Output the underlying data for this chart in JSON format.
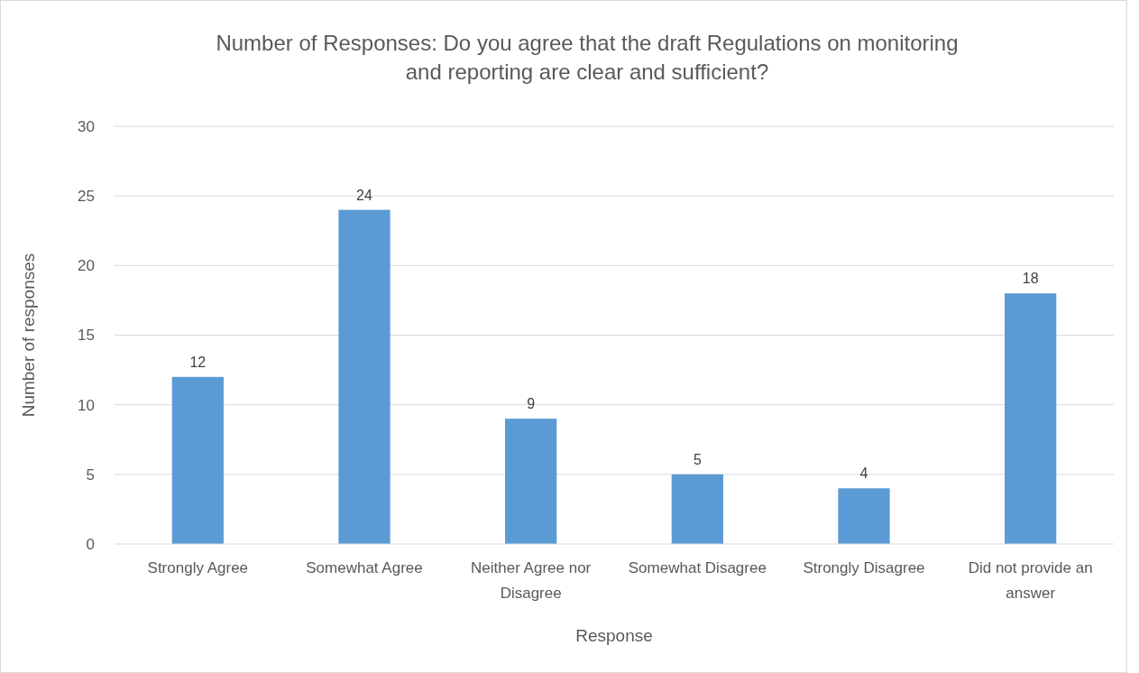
{
  "chart_data": {
    "type": "bar",
    "title": "Number of Responses: Do you agree that the draft Regulations on monitoring and reporting are clear and sufficient?",
    "xlabel": "Response",
    "ylabel": "Number of responses",
    "categories": [
      "Strongly Agree",
      "Somewhat Agree",
      "Neither Agree nor Disagree",
      "Somewhat Disagree",
      "Strongly Disagree",
      "Did not provide an answer"
    ],
    "values": [
      12,
      24,
      9,
      5,
      4,
      18
    ],
    "color": "#5b9bd5",
    "ylim": [
      0,
      30
    ],
    "yticks": [
      0,
      5,
      10,
      15,
      20,
      25,
      30
    ],
    "grid": "y",
    "data_labels": true
  }
}
